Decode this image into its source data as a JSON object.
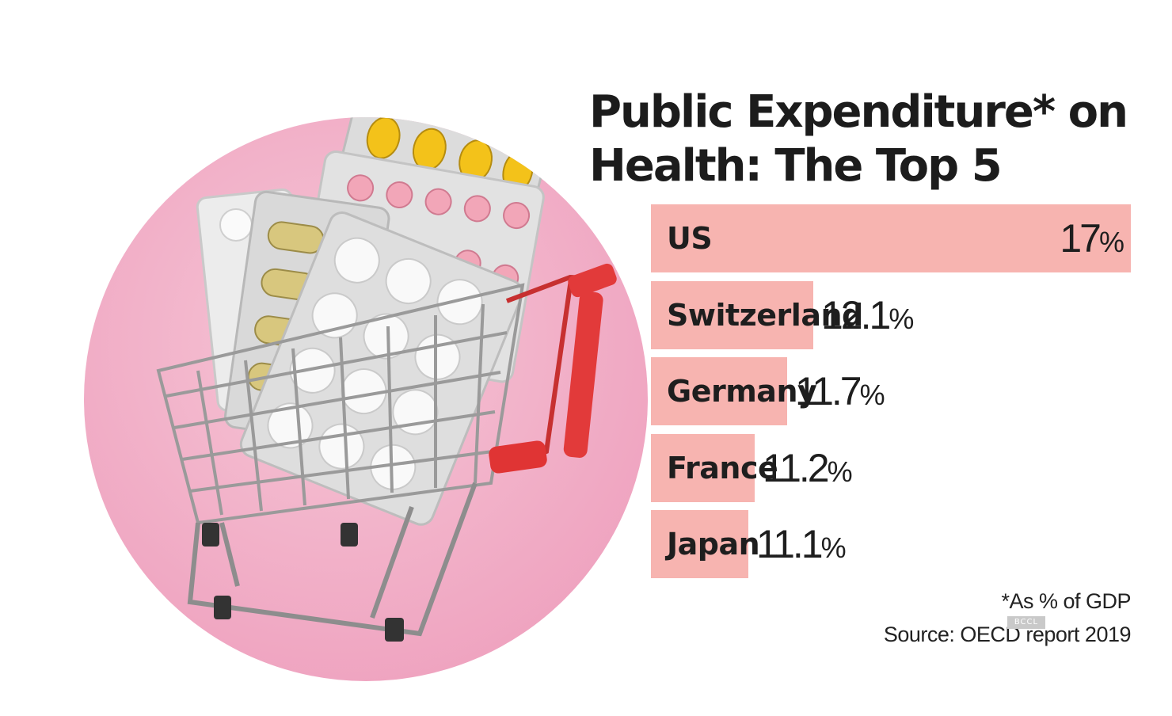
{
  "title": "Public Expenditure* on Health: The Top 5",
  "footnote": "*As % of GDP",
  "source": "Source: OECD report 2019",
  "watermark": "BCCL",
  "colors": {
    "bar": "#f7b4b0",
    "circle": "#f4bccf",
    "cart_handle": "#e23a3a"
  },
  "photo": {
    "subject": "shopping-cart-with-pill-blister-packs"
  },
  "chart_data": {
    "type": "bar",
    "orientation": "horizontal",
    "title": "Public Expenditure* on Health: The Top 5",
    "categories": [
      "US",
      "Switzerland",
      "Germany",
      "France",
      "Japan"
    ],
    "values": [
      17,
      12.1,
      11.7,
      11.2,
      11.1
    ],
    "value_labels": [
      "17",
      "12.1",
      "11.7",
      "11.2",
      "11.1"
    ],
    "value_suffix": "%",
    "xlabel": "",
    "ylabel": "",
    "grid": false,
    "legend": "none"
  }
}
